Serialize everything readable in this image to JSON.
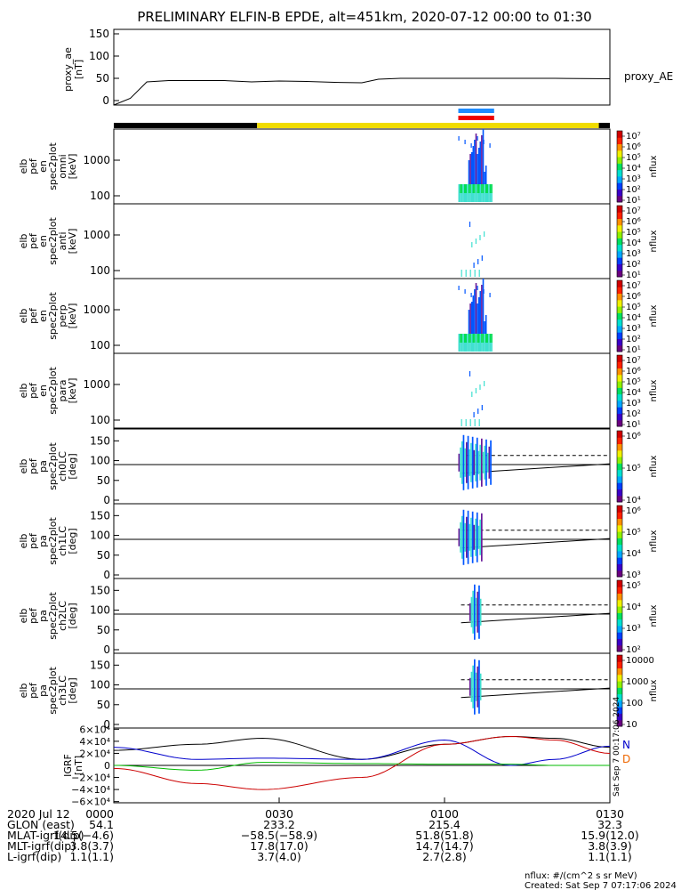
{
  "title": "PRELIMINARY ELFIN-B EPDE, alt=451km, 2020-07-12 00:00 to 01:30",
  "proxy_panel": {
    "ylabel": [
      "proxy_ae",
      "[nT]"
    ],
    "series_label": "proxy_AE",
    "yticks": [
      "150",
      "100",
      "50",
      "0"
    ],
    "ylim": [
      -10,
      160
    ]
  },
  "spec_panels": [
    {
      "ylabel": [
        "elb",
        "pef",
        "en",
        "spec2plot",
        "omni",
        "[keV]"
      ],
      "yticks": [
        "1000",
        "100"
      ],
      "cbar_ticks": [
        "10⁷",
        "10⁶",
        "10⁵",
        "10⁴",
        "10³",
        "10²",
        "10¹"
      ],
      "cbar_label": "nflux"
    },
    {
      "ylabel": [
        "elb",
        "pef",
        "en",
        "spec2plot",
        "anti",
        "[keV]"
      ],
      "yticks": [
        "1000",
        "100"
      ],
      "cbar_ticks": [
        "10⁷",
        "10⁶",
        "10⁵",
        "10⁴",
        "10³",
        "10²",
        "10¹"
      ],
      "cbar_label": "nflux"
    },
    {
      "ylabel": [
        "elb",
        "pef",
        "en",
        "spec2plot",
        "perp",
        "[keV]"
      ],
      "yticks": [
        "1000",
        "100"
      ],
      "cbar_ticks": [
        "10⁷",
        "10⁶",
        "10⁵",
        "10⁴",
        "10³",
        "10²",
        "10¹"
      ],
      "cbar_label": "nflux"
    },
    {
      "ylabel": [
        "elb",
        "pef",
        "en",
        "spec2plot",
        "para",
        "[keV]"
      ],
      "yticks": [
        "1000",
        "100"
      ],
      "cbar_ticks": [
        "10⁷",
        "10⁶",
        "10⁵",
        "10⁴",
        "10³",
        "10²",
        "10¹"
      ],
      "cbar_label": "nflux"
    }
  ],
  "pa_panels": [
    {
      "ylabel": [
        "elb",
        "pef",
        "pa",
        "spec2plot",
        "ch0LC",
        "[deg]"
      ],
      "yticks": [
        "150",
        "100",
        "50",
        "0"
      ],
      "cbar_ticks": [
        "10⁶",
        "10⁵",
        "10⁴"
      ],
      "cbar_label": "nflux"
    },
    {
      "ylabel": [
        "elb",
        "pef",
        "pa",
        "spec2plot",
        "ch1LC",
        "[deg]"
      ],
      "yticks": [
        "150",
        "100",
        "50",
        "0"
      ],
      "cbar_ticks": [
        "10⁶",
        "10⁵",
        "10⁴",
        "10³"
      ],
      "cbar_label": "nflux"
    },
    {
      "ylabel": [
        "elb",
        "pef",
        "pa",
        "spec2plot",
        "ch2LC",
        "[deg]"
      ],
      "yticks": [
        "150",
        "100",
        "50",
        "0"
      ],
      "cbar_ticks": [
        "10⁵",
        "10⁴",
        "10³",
        "10²"
      ],
      "cbar_label": "nflux"
    },
    {
      "ylabel": [
        "elb",
        "pef",
        "pa",
        "spec2plot",
        "ch3LC",
        "[deg]"
      ],
      "yticks": [
        "150",
        "100",
        "50",
        "0"
      ],
      "cbar_ticks": [
        "10000",
        "1000",
        "100",
        "10"
      ],
      "cbar_label": "nflux"
    }
  ],
  "igrf_panel": {
    "ylabel": [
      "IGRF",
      "[nT]"
    ],
    "yticks": [
      "6×10⁴",
      "4×10⁴",
      "2×10⁴",
      "0",
      "−2×10⁴",
      "−4×10⁴",
      "−6×10⁴"
    ],
    "legend": [
      "N",
      "D"
    ],
    "side_note": "Sat Sep  7 00:17:06 2024"
  },
  "footer": {
    "rows": [
      {
        "label": "2020 Jul 12",
        "values": [
          "0000",
          "0030",
          "0100",
          "0130"
        ]
      },
      {
        "label": "GLON (east)",
        "values": [
          "54.1",
          "233.2",
          "215.4",
          "32.3"
        ]
      },
      {
        "label": "MLAT-igrf(dip)",
        "values": [
          "14.5(−4.6)",
          "−58.5(−58.9)",
          "51.8(51.8)",
          "15.9(12.0)"
        ]
      },
      {
        "label": "MLT-igrf(dip)",
        "values": [
          "3.8(3.7)",
          "17.8(17.0)",
          "14.7(14.7)",
          "3.8(3.9)"
        ]
      },
      {
        "label": "L-igrf(dip)",
        "values": [
          "1.1(1.1)",
          "3.7(4.0)",
          "2.7(2.8)",
          "1.1(1.1)"
        ]
      }
    ],
    "units": "nflux: #/(cm^2 s sr MeV)",
    "created": "Created: Sat Sep  7 07:17:06 2024"
  },
  "colors": {
    "igrf_x": "#000000",
    "igrf_y": "#0000cc",
    "igrf_z": "#cc0000",
    "igrf_w": "#00bb00",
    "region_black": "#000000",
    "region_yellow": "#f0dc00",
    "sci_blue": "#1e8cff",
    "sci_red": "#ee0000",
    "spec_cyan": "#40e0d0",
    "spec_green": "#00dd55",
    "spec_blue": "#0055ff",
    "spec_purple": "#6a1b9a"
  },
  "chart_data": {
    "type": "line",
    "x_axis": {
      "label": "2020 Jul 12",
      "ticks": [
        "0000",
        "0030",
        "0100",
        "0130"
      ],
      "range_min": [
        0,
        90
      ]
    },
    "proxy_ae": {
      "t_min": [
        0,
        3,
        6,
        10,
        20,
        25,
        30,
        35,
        40,
        45,
        48,
        52,
        60,
        70,
        80,
        90
      ],
      "values": [
        -10,
        5,
        42,
        45,
        45,
        42,
        44,
        43,
        41,
        40,
        48,
        50,
        50,
        50,
        50,
        49
      ]
    },
    "region_bar": [
      {
        "start_min": 0,
        "end_min": 26,
        "color": "black"
      },
      {
        "start_min": 26,
        "end_min": 88,
        "color": "yellow"
      },
      {
        "start_min": 88,
        "end_min": 90,
        "color": "black"
      }
    ],
    "science_zones": [
      {
        "start_min": 62.5,
        "end_min": 69.0,
        "color": "blue"
      },
      {
        "start_min": 62.5,
        "end_min": 69.0,
        "color": "red"
      }
    ],
    "igrf": {
      "t_min": [
        0,
        15,
        27,
        45,
        60,
        72,
        80,
        90
      ],
      "series": [
        {
          "values": [
            25000,
            35000,
            45000,
            10000,
            35000,
            48000,
            45000,
            30000
          ]
        },
        {
          "values": [
            30000,
            10000,
            12000,
            10000,
            42000,
            0,
            10000,
            32000
          ]
        },
        {
          "values": [
            -5000,
            -30000,
            -40000,
            -20000,
            35000,
            48000,
            42000,
            20000
          ]
        },
        {
          "values": [
            0,
            -8000,
            5000,
            3000,
            2000,
            2000,
            0,
            0
          ]
        }
      ]
    },
    "pa_lines": {
      "loss_cone_deg": 90,
      "anti_loss_cone_deg": 113,
      "pa_start": 68,
      "pa_end": 92
    }
  }
}
